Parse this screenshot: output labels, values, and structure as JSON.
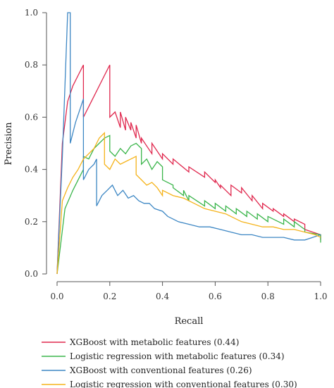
{
  "chart_data": {
    "type": "line",
    "xlabel": "Recall",
    "ylabel": "Precision",
    "xlim": [
      0.0,
      1.0
    ],
    "ylim": [
      0.0,
      1.0
    ],
    "xticks": [
      "0.0",
      "0.2",
      "0.4",
      "0.6",
      "0.8",
      "1.0"
    ],
    "yticks": [
      "0.0",
      "0.2",
      "0.4",
      "0.6",
      "0.8",
      "1.0"
    ],
    "legend_position": "bottom",
    "grid": false,
    "series": [
      {
        "name": "XGBoost with metabolic features (0.44)",
        "color": "#e0284e",
        "x": [
          0.0,
          0.02,
          0.04,
          0.06,
          0.08,
          0.1,
          0.1,
          0.14,
          0.18,
          0.2,
          0.2,
          0.22,
          0.24,
          0.24,
          0.26,
          0.26,
          0.28,
          0.28,
          0.3,
          0.3,
          0.32,
          0.32,
          0.36,
          0.36,
          0.4,
          0.4,
          0.44,
          0.44,
          0.5,
          0.5,
          0.56,
          0.56,
          0.6,
          0.6,
          0.62,
          0.62,
          0.66,
          0.66,
          0.7,
          0.7,
          0.74,
          0.74,
          0.78,
          0.78,
          0.82,
          0.82,
          0.86,
          0.86,
          0.9,
          0.9,
          0.94,
          0.94,
          0.97,
          1.0,
          1.0
        ],
        "y": [
          0.0,
          0.5,
          0.66,
          0.72,
          0.76,
          0.8,
          0.6,
          0.68,
          0.76,
          0.8,
          0.6,
          0.62,
          0.56,
          0.62,
          0.55,
          0.6,
          0.55,
          0.58,
          0.52,
          0.57,
          0.5,
          0.52,
          0.46,
          0.5,
          0.44,
          0.46,
          0.42,
          0.44,
          0.39,
          0.41,
          0.37,
          0.39,
          0.35,
          0.36,
          0.33,
          0.34,
          0.3,
          0.34,
          0.31,
          0.33,
          0.28,
          0.3,
          0.25,
          0.27,
          0.24,
          0.25,
          0.22,
          0.23,
          0.2,
          0.21,
          0.19,
          0.17,
          0.16,
          0.15,
          0.13
        ]
      },
      {
        "name": "Logistic regression with metabolic features (0.34)",
        "color": "#3ab54a",
        "x": [
          0.0,
          0.03,
          0.06,
          0.08,
          0.1,
          0.1,
          0.12,
          0.14,
          0.16,
          0.18,
          0.2,
          0.2,
          0.22,
          0.24,
          0.26,
          0.28,
          0.3,
          0.32,
          0.32,
          0.34,
          0.36,
          0.38,
          0.4,
          0.4,
          0.44,
          0.44,
          0.48,
          0.48,
          0.5,
          0.5,
          0.56,
          0.56,
          0.6,
          0.6,
          0.64,
          0.64,
          0.68,
          0.68,
          0.72,
          0.72,
          0.76,
          0.76,
          0.8,
          0.8,
          0.86,
          0.86,
          0.9,
          0.9,
          0.94,
          0.94,
          1.0,
          1.0
        ],
        "y": [
          0.0,
          0.25,
          0.32,
          0.36,
          0.4,
          0.45,
          0.44,
          0.48,
          0.5,
          0.52,
          0.53,
          0.47,
          0.45,
          0.48,
          0.46,
          0.49,
          0.5,
          0.48,
          0.42,
          0.44,
          0.4,
          0.43,
          0.41,
          0.36,
          0.34,
          0.33,
          0.3,
          0.32,
          0.28,
          0.3,
          0.26,
          0.28,
          0.25,
          0.27,
          0.24,
          0.26,
          0.23,
          0.25,
          0.22,
          0.24,
          0.21,
          0.23,
          0.2,
          0.22,
          0.19,
          0.21,
          0.18,
          0.2,
          0.17,
          0.16,
          0.15,
          0.12
        ]
      },
      {
        "name": "XGBoost with conventional features (0.26)",
        "color": "#3d87c4",
        "x": [
          0.0,
          0.02,
          0.04,
          0.05,
          0.05,
          0.07,
          0.09,
          0.1,
          0.1,
          0.12,
          0.14,
          0.15,
          0.15,
          0.17,
          0.19,
          0.21,
          0.23,
          0.25,
          0.27,
          0.29,
          0.31,
          0.33,
          0.35,
          0.37,
          0.4,
          0.42,
          0.44,
          0.46,
          0.5,
          0.54,
          0.58,
          0.62,
          0.66,
          0.7,
          0.74,
          0.78,
          0.82,
          0.86,
          0.9,
          0.94,
          0.97,
          1.0
        ],
        "y": [
          0.0,
          0.45,
          1.0,
          1.0,
          0.5,
          0.58,
          0.64,
          0.67,
          0.36,
          0.4,
          0.42,
          0.44,
          0.26,
          0.3,
          0.32,
          0.34,
          0.3,
          0.32,
          0.29,
          0.3,
          0.28,
          0.27,
          0.27,
          0.25,
          0.24,
          0.22,
          0.21,
          0.2,
          0.19,
          0.18,
          0.18,
          0.17,
          0.16,
          0.15,
          0.15,
          0.14,
          0.14,
          0.14,
          0.13,
          0.13,
          0.14,
          0.15
        ]
      },
      {
        "name": "Logistic regression with conventional features (0.30)",
        "color": "#f5b31a",
        "x": [
          0.0,
          0.02,
          0.04,
          0.06,
          0.08,
          0.1,
          0.12,
          0.14,
          0.16,
          0.18,
          0.18,
          0.2,
          0.22,
          0.24,
          0.26,
          0.28,
          0.3,
          0.3,
          0.32,
          0.34,
          0.36,
          0.38,
          0.4,
          0.4,
          0.44,
          0.48,
          0.52,
          0.56,
          0.6,
          0.64,
          0.66,
          0.7,
          0.74,
          0.78,
          0.82,
          0.86,
          0.9,
          0.94,
          0.98,
          1.0
        ],
        "y": [
          0.0,
          0.28,
          0.33,
          0.37,
          0.4,
          0.44,
          0.46,
          0.48,
          0.52,
          0.54,
          0.42,
          0.4,
          0.44,
          0.42,
          0.43,
          0.44,
          0.45,
          0.38,
          0.36,
          0.34,
          0.35,
          0.33,
          0.3,
          0.32,
          0.3,
          0.29,
          0.27,
          0.25,
          0.24,
          0.23,
          0.22,
          0.2,
          0.19,
          0.18,
          0.18,
          0.17,
          0.17,
          0.16,
          0.15,
          0.14
        ]
      }
    ]
  }
}
